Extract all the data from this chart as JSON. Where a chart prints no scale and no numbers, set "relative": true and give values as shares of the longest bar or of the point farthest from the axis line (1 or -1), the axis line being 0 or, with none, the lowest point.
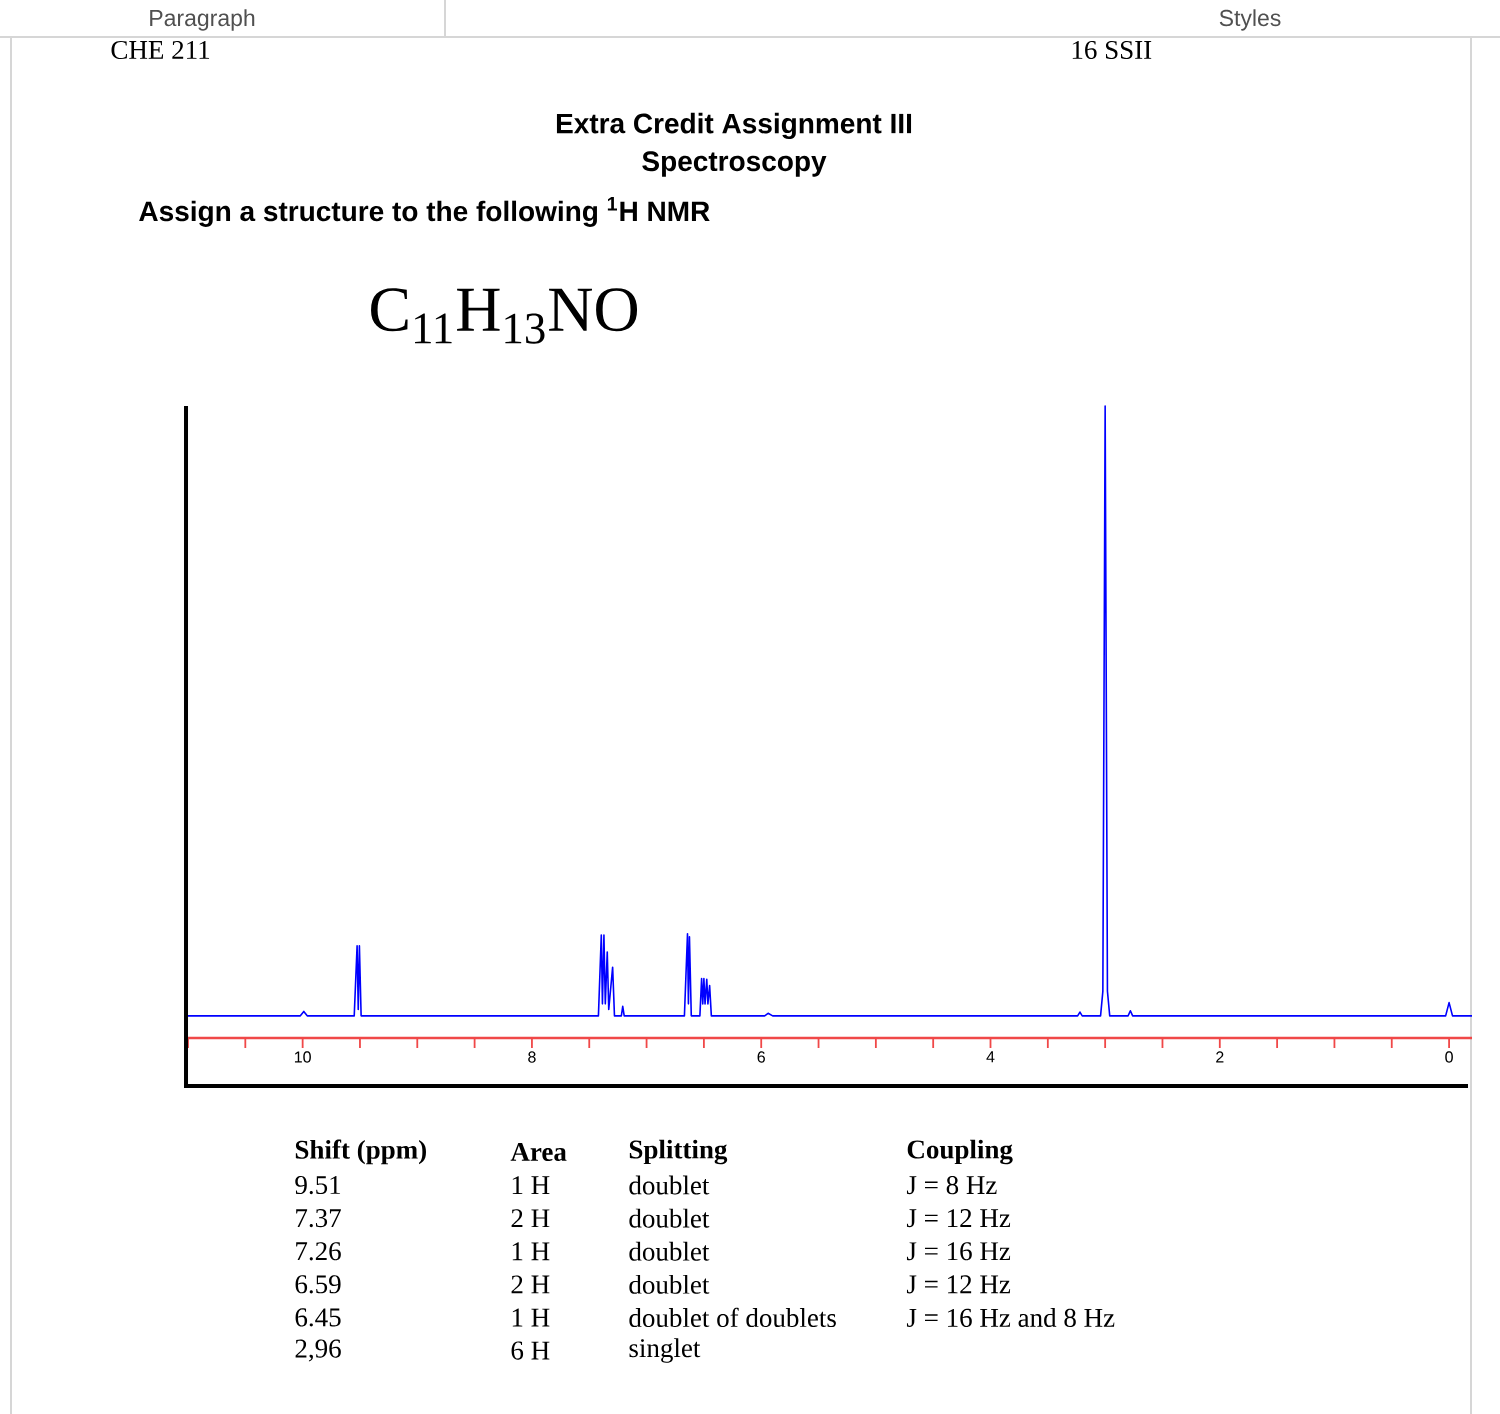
{
  "chart_data": {
    "type": "line",
    "title": "Extra Credit Assignment III",
    "subtitle": "Spectroscopy",
    "annotations": [
      "Paragraph",
      "Styles",
      "CHE 211",
      "16 SSII",
      "Assign a structure to the following $^{1}$H NMR",
      "C$_{11}$H$_{13}$NO",
      "Shift (ppm)",
      "Area",
      "Splitting",
      "Coupling",
      "9.51",
      "1 H",
      "doublet",
      "J = 8 Hz",
      "7.37",
      "2 H",
      "doublet",
      "J = 12 Hz",
      "7.26",
      "1 H",
      "doublet",
      "J = 16 Hz",
      "6.59",
      "2 H",
      "doublet",
      "J = 12 Hz",
      "6.45",
      "1 H",
      "doublet of doublets",
      "J = 16 Hz and 8 Hz",
      "2,96",
      "6 H",
      "singlet"
    ],
    "x": [
      11.0,
      10.02,
      9.99,
      9.96,
      9.55,
      9.525,
      9.515,
      9.505,
      9.49,
      7.42,
      7.395,
      7.385,
      7.372,
      7.36,
      7.343,
      7.33,
      7.296,
      7.28,
      7.22,
      7.208,
      7.195,
      6.67,
      6.643,
      6.635,
      6.626,
      6.61,
      6.535,
      6.52,
      6.51,
      6.5,
      6.49,
      6.475,
      6.465,
      6.45,
      6.435,
      5.97,
      5.94,
      5.9,
      3.24,
      3.22,
      3.2,
      3.04,
      3.02,
      3.0,
      2.98,
      2.96,
      2.8,
      2.78,
      2.76,
      0.03,
      0.0,
      -0.03,
      -0.2
    ],
    "series": [
      {
        "color": "#0000ff",
        "values": [
          0.035,
          0.035,
          0.042,
          0.035,
          0.035,
          0.146,
          0.045,
          0.146,
          0.035,
          0.035,
          0.163,
          0.054,
          0.163,
          0.054,
          0.136,
          0.045,
          0.112,
          0.035,
          0.035,
          0.05,
          0.035,
          0.035,
          0.165,
          0.054,
          0.16,
          0.035,
          0.035,
          0.094,
          0.054,
          0.094,
          0.054,
          0.093,
          0.054,
          0.083,
          0.035,
          0.035,
          0.039,
          0.035,
          0.035,
          0.041,
          0.035,
          0.035,
          0.074,
          1,
          0.074,
          0.035,
          0.035,
          0.043,
          0.035,
          0.035,
          0.056,
          0.035,
          0.035
        ]
      }
    ],
    "relative": true,
    "xlim": [
      11,
      -0.2
    ],
    "xticks": [
      {
        "value": 11,
        "label": null
      },
      {
        "value": 10.5,
        "label": null
      },
      10,
      {
        "value": 9.5,
        "label": null
      },
      {
        "value": 9,
        "label": null
      },
      {
        "value": 8.5,
        "label": null
      },
      8,
      {
        "value": 7.5,
        "label": null
      },
      {
        "value": 7,
        "label": null
      },
      {
        "value": 6.5,
        "label": null
      },
      6,
      {
        "value": 5.5,
        "label": null
      },
      {
        "value": 5,
        "label": null
      },
      {
        "value": 4.5,
        "label": null
      },
      4,
      {
        "value": 3.5,
        "label": null
      },
      {
        "value": 3,
        "label": null
      },
      {
        "value": 2.5,
        "label": null
      },
      2,
      {
        "value": 1.5,
        "label": null
      },
      {
        "value": 1,
        "label": null
      },
      {
        "value": 0.5,
        "label": null
      },
      0
    ]
  }
}
